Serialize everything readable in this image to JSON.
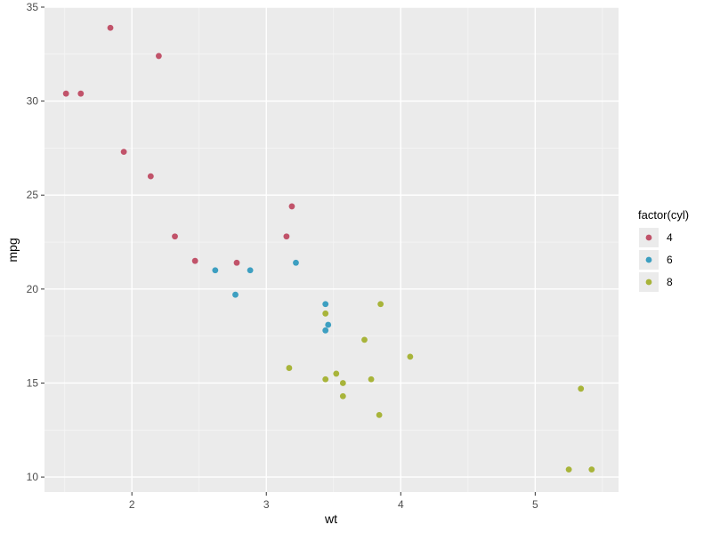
{
  "chart_data": {
    "type": "scatter",
    "xlabel": "wt",
    "ylabel": "mpg",
    "xlim": [
      1.35,
      5.62
    ],
    "ylim": [
      9.2,
      35.0
    ],
    "x_ticks": [
      2,
      3,
      4,
      5
    ],
    "y_ticks": [
      10,
      15,
      20,
      25,
      30,
      35
    ],
    "grid": true,
    "legend": {
      "title": "factor(cyl)",
      "position": "right"
    },
    "series": [
      {
        "name": "4",
        "color": "#c1536a",
        "points": [
          [
            1.51,
            30.4
          ],
          [
            1.62,
            30.4
          ],
          [
            1.84,
            33.9
          ],
          [
            1.94,
            27.3
          ],
          [
            2.14,
            26.0
          ],
          [
            2.2,
            32.4
          ],
          [
            2.32,
            22.8
          ],
          [
            2.47,
            21.5
          ],
          [
            2.78,
            21.4
          ],
          [
            3.15,
            22.8
          ],
          [
            3.19,
            24.4
          ]
        ]
      },
      {
        "name": "6",
        "color": "#3d9fc1",
        "points": [
          [
            2.62,
            21.0
          ],
          [
            2.77,
            19.7
          ],
          [
            2.88,
            21.0
          ],
          [
            3.22,
            21.4
          ],
          [
            3.44,
            19.2
          ],
          [
            3.44,
            17.8
          ],
          [
            3.46,
            18.1
          ]
        ]
      },
      {
        "name": "8",
        "color": "#a8b43a",
        "points": [
          [
            3.17,
            15.8
          ],
          [
            3.44,
            18.7
          ],
          [
            3.44,
            15.2
          ],
          [
            3.52,
            15.5
          ],
          [
            3.57,
            15.0
          ],
          [
            3.57,
            14.3
          ],
          [
            3.73,
            17.3
          ],
          [
            3.78,
            15.2
          ],
          [
            3.84,
            13.3
          ],
          [
            3.85,
            19.2
          ],
          [
            4.07,
            16.4
          ],
          [
            5.25,
            10.4
          ],
          [
            5.34,
            14.7
          ],
          [
            5.42,
            10.4
          ]
        ]
      }
    ]
  }
}
